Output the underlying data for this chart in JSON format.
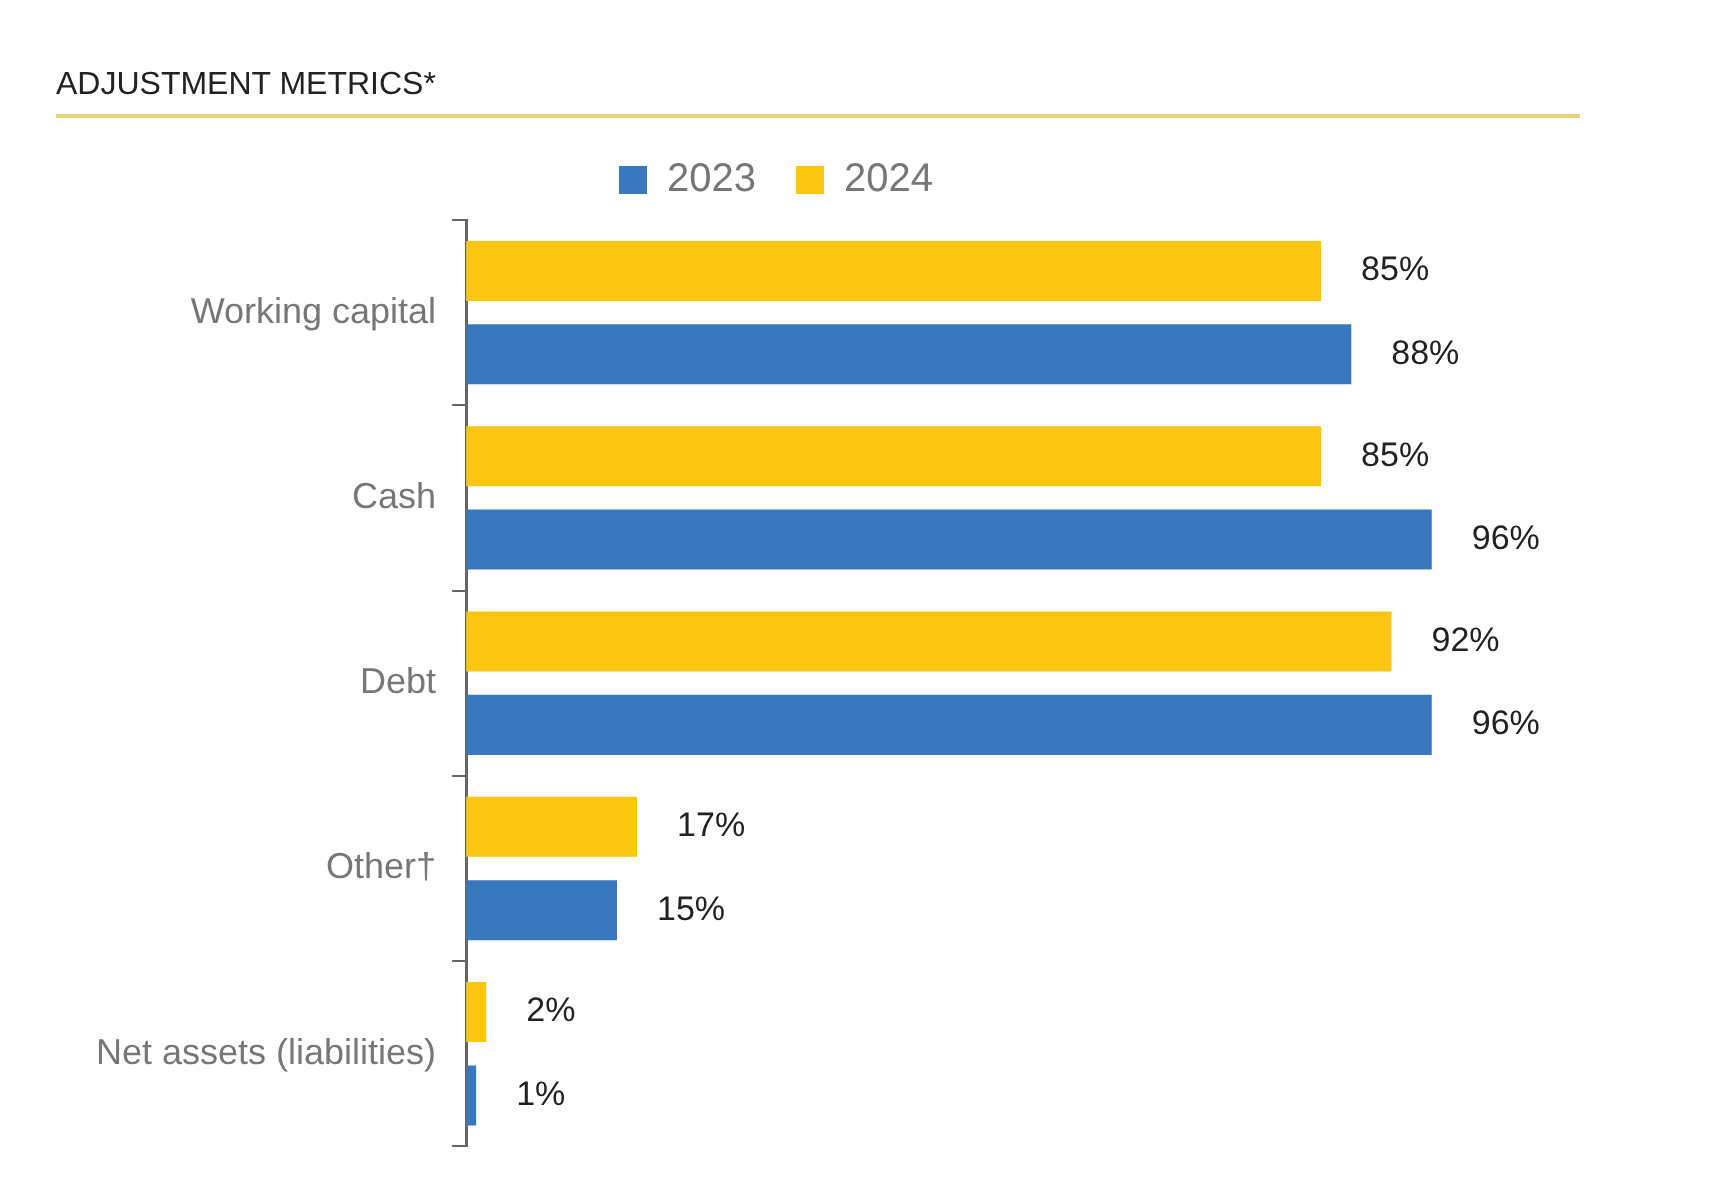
{
  "chart_data": {
    "type": "bar",
    "orientation": "horizontal",
    "title": "ADJUSTMENT METRICS*",
    "categories": [
      "Working capital",
      "Cash",
      "Debt",
      "Other†",
      "Net assets (liabilities)"
    ],
    "series": [
      {
        "name": "2023",
        "color": "#3a78bd",
        "values": [
          88,
          96,
          96,
          15,
          1
        ],
        "value_labels": [
          "88%",
          "96%",
          "96%",
          "15%",
          "1%"
        ]
      },
      {
        "name": "2024",
        "color": "#fcc512",
        "values": [
          85,
          85,
          92,
          17,
          2
        ],
        "value_labels": [
          "85%",
          "85%",
          "92%",
          "17%",
          "2%"
        ]
      }
    ],
    "tick_labels": "y",
    "legend": "top"
  }
}
